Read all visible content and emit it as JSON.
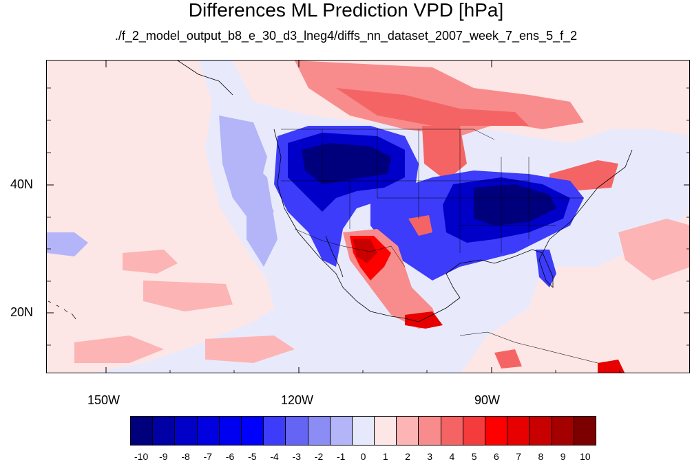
{
  "title": "Differences ML Prediction VPD [hPa]",
  "subtitle": "./f_2_model_output_b8_e_30_d3_lneg4/diffs_nn_dataset_2007_week_7_ens_5_f_2",
  "map": {
    "projection": "cylindrical equidistant",
    "lon_range": [
      -159,
      -59
    ],
    "lat_range": [
      11,
      60
    ],
    "lon_ticks": [
      {
        "value": -150,
        "label": "150W"
      },
      {
        "value": -120,
        "label": "120W"
      },
      {
        "value": -90,
        "label": "90W"
      }
    ],
    "lat_ticks": [
      {
        "value": 40,
        "label": "40N"
      },
      {
        "value": 20,
        "label": "20N"
      }
    ],
    "background_color": "#e8eafc"
  },
  "colorbar": {
    "labels": [
      "-10",
      "-9",
      "-8",
      "-7",
      "-6",
      "-5",
      "-4",
      "-3",
      "-2",
      "-1",
      "0",
      "1",
      "2",
      "3",
      "4",
      "5",
      "6",
      "7",
      "8",
      "9",
      "10"
    ],
    "colors": [
      "#00007d",
      "#0000a5",
      "#0000c8",
      "#0000e0",
      "#0000f0",
      "#0000ff",
      "#3c3cfa",
      "#6464f5",
      "#8c8cf5",
      "#b4b4f8",
      "#e6e8fc",
      "#fde6e6",
      "#fcb4b4",
      "#f88c8c",
      "#f56464",
      "#f53c3c",
      "#ff0000",
      "#e60000",
      "#c80000",
      "#a50000",
      "#7d0000"
    ]
  }
}
